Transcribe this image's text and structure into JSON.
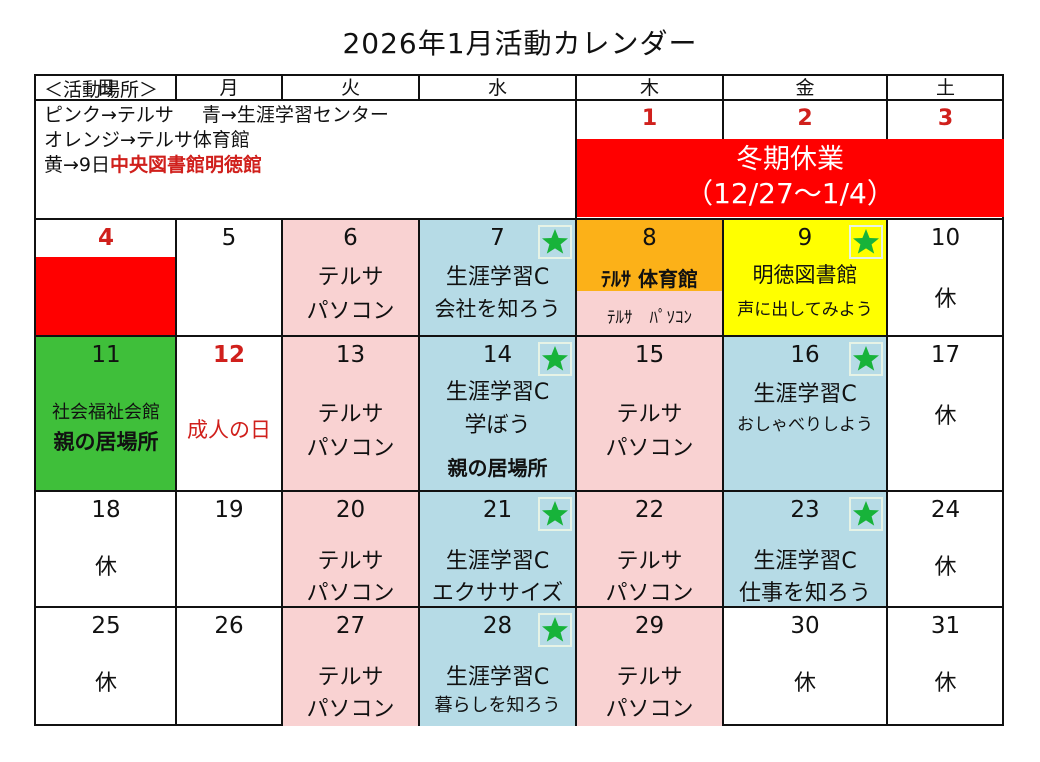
{
  "title": "2026年1月活動カレンダー",
  "weekdays": [
    "日",
    "月",
    "火",
    "水",
    "木",
    "金",
    "土"
  ],
  "legend": {
    "heading": "＜活動場所＞",
    "line1_a": "ピンク→テルサ",
    "line1_b": "青→生涯学習センター",
    "line2": "オレンジ→テルサ体育館",
    "line3_prefix": "黄→9日",
    "line3_red": "中央図書館明徳館"
  },
  "winter_break": {
    "label": "冬期休業",
    "range": "（12/27〜1/4）",
    "dates": [
      "1",
      "2",
      "3"
    ]
  },
  "weeks": [
    [
      {
        "num": "4",
        "numRed": true
      },
      {
        "num": "5"
      },
      {
        "num": "6",
        "lines": [
          "テルサ",
          "パソコン"
        ]
      },
      {
        "num": "7",
        "lines": [
          "生涯学習C",
          "会社を知ろう"
        ],
        "star": true
      },
      {
        "num": "8",
        "lines": [
          "ﾃﾙｻ 体育館",
          "ﾃﾙｻ　ﾊﾟｿｺﾝ"
        ]
      },
      {
        "num": "9",
        "lines": [
          "明徳図書館",
          "声に出してみよう"
        ],
        "star": true
      },
      {
        "num": "10",
        "lines": [
          "休"
        ]
      }
    ],
    [
      {
        "num": "11",
        "lines": [
          "社会福祉会館",
          "親の居場所"
        ]
      },
      {
        "num": "12",
        "numRed": true,
        "lines": [
          "成人の日"
        ]
      },
      {
        "num": "13",
        "lines": [
          "テルサ",
          "パソコン"
        ]
      },
      {
        "num": "14",
        "lines": [
          "生涯学習C",
          "学ぼう",
          "親の居場所"
        ],
        "star": true
      },
      {
        "num": "15",
        "lines": [
          "テルサ",
          "パソコン"
        ]
      },
      {
        "num": "16",
        "lines": [
          "生涯学習C",
          "おしゃべりしよう"
        ],
        "star": true
      },
      {
        "num": "17",
        "lines": [
          "休"
        ]
      }
    ],
    [
      {
        "num": "18",
        "lines": [
          "休"
        ]
      },
      {
        "num": "19"
      },
      {
        "num": "20",
        "lines": [
          "テルサ",
          "パソコン"
        ]
      },
      {
        "num": "21",
        "lines": [
          "生涯学習C",
          "エクササイズ"
        ],
        "star": true
      },
      {
        "num": "22",
        "lines": [
          "テルサ",
          "パソコン"
        ]
      },
      {
        "num": "23",
        "lines": [
          "生涯学習C",
          "仕事を知ろう"
        ],
        "star": true
      },
      {
        "num": "24",
        "lines": [
          "休"
        ]
      }
    ],
    [
      {
        "num": "25",
        "lines": [
          "休"
        ]
      },
      {
        "num": "26"
      },
      {
        "num": "27",
        "lines": [
          "テルサ",
          "パソコン"
        ]
      },
      {
        "num": "28",
        "lines": [
          "生涯学習C",
          "暮らしを知ろう"
        ],
        "star": true
      },
      {
        "num": "29",
        "lines": [
          "テルサ",
          "パソコン"
        ]
      },
      {
        "num": "30",
        "lines": [
          "休"
        ]
      },
      {
        "num": "31",
        "lines": [
          "休"
        ]
      }
    ]
  ],
  "colors": {
    "pink": "#f9d2d2",
    "blue": "#b6dbe6",
    "orange": "#fcb118",
    "yellow": "#ffff00",
    "green": "#3fbf3a",
    "red": "#ff0000",
    "star": "#17b33a"
  },
  "icons": {
    "star": "star-icon"
  }
}
